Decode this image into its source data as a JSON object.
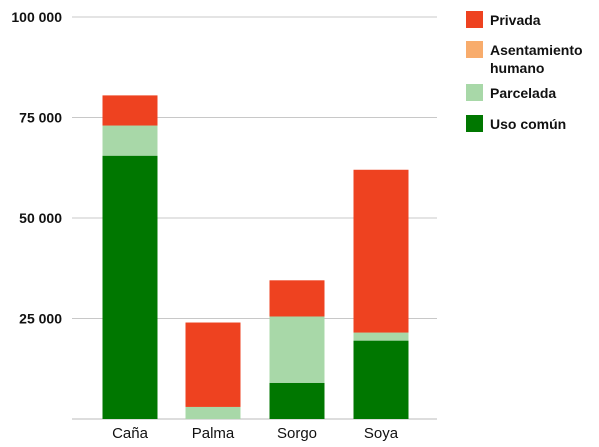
{
  "chart_data": {
    "type": "bar",
    "stacked": true,
    "categories": [
      "Caña",
      "Palma",
      "Sorgo",
      "Soya"
    ],
    "series": [
      {
        "name": "Uso común",
        "color": "#007700",
        "values": [
          65500,
          0,
          9000,
          19500
        ]
      },
      {
        "name": "Parcelada",
        "color": "#a8d8a8",
        "values": [
          7500,
          3000,
          16500,
          2000
        ]
      },
      {
        "name": "Asentamiento humano",
        "color": "#f8ac6c",
        "values": [
          0,
          0,
          0,
          0
        ]
      },
      {
        "name": "Privada",
        "color": "#ee4220",
        "values": [
          7500,
          21000,
          9000,
          40500
        ]
      }
    ],
    "legend_order": [
      "Privada",
      "Asentamiento humano",
      "Parcelada",
      "Uso común"
    ],
    "legend_lines": [
      [
        "Privada"
      ],
      [
        "Asentamiento",
        "humano"
      ],
      [
        "Parcelada"
      ],
      [
        "Uso común"
      ]
    ],
    "yticks": [
      0,
      25000,
      50000,
      75000,
      100000
    ],
    "ytick_labels": [
      "",
      "25 000",
      "50 000",
      "75 000",
      "100 000"
    ],
    "ylim": [
      0,
      100000
    ],
    "title": "",
    "xlabel": "",
    "ylabel": "",
    "grid": true,
    "legend_position": "right"
  }
}
